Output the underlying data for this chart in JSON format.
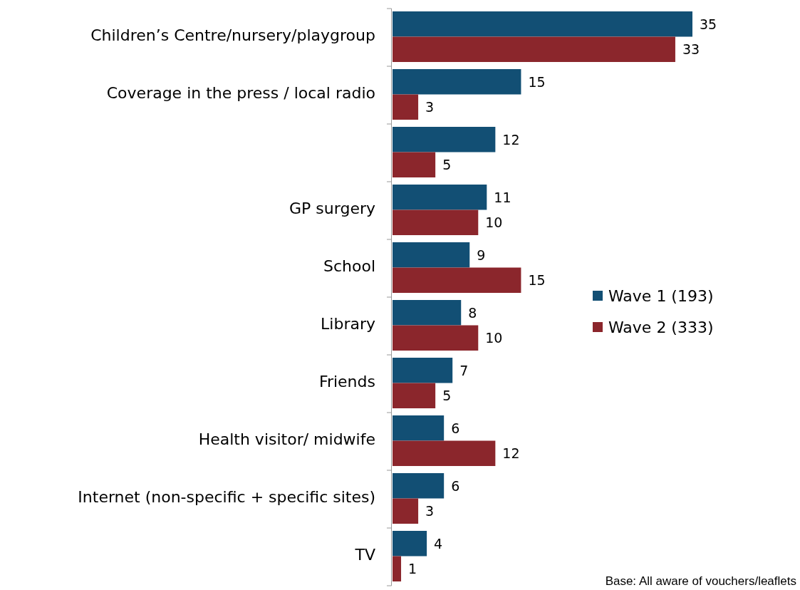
{
  "chart_data": {
    "type": "bar",
    "orientation": "horizontal",
    "categories": [
      "Children’s Centre/nursery/playgroup",
      "Coverage in the press / local radio",
      null,
      "GP surgery",
      "School",
      "Library",
      "Friends ",
      "Health visitor/ midwife",
      "Internet (non-specific + specific sites)",
      "TV"
    ],
    "series": [
      {
        "name": "Wave 1 (193)",
        "color": "#124f74",
        "values": [
          35,
          15,
          12,
          11,
          9,
          8,
          7,
          6,
          6,
          4
        ]
      },
      {
        "name": "Wave 2 (333)",
        "color": "#8b262c",
        "values": [
          33,
          3,
          5,
          10,
          15,
          10,
          5,
          12,
          3,
          1
        ]
      }
    ],
    "data_labels": true,
    "legend": "right",
    "annotations": [
      "Base: All aware of vouchers/leaflets"
    ]
  }
}
